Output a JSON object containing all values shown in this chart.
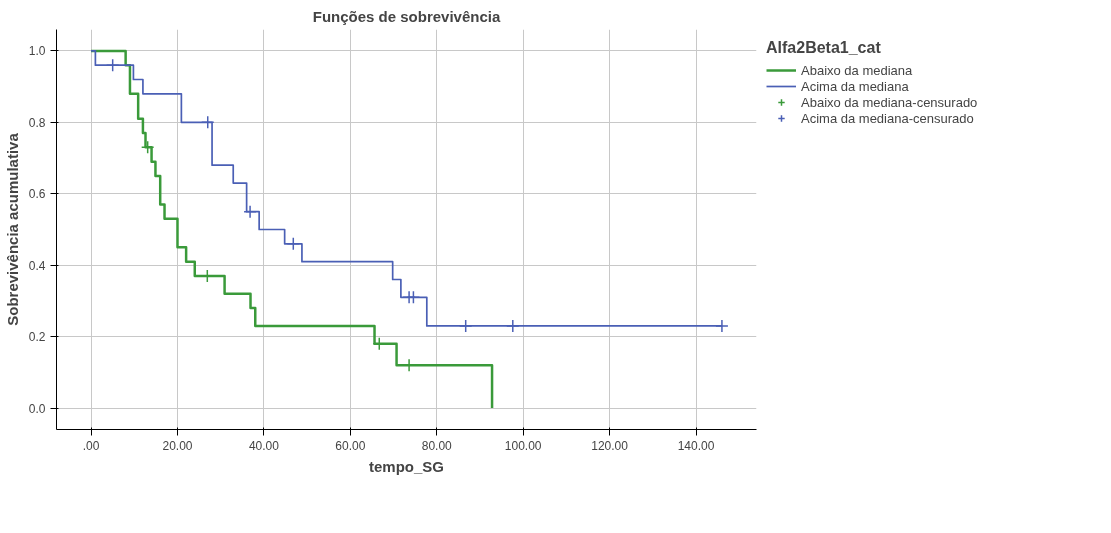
{
  "chart_data": {
    "type": "step",
    "title": "Funções de sobrevivência",
    "xlabel": "tempo_SG",
    "ylabel": "Sobrevivência acumulativa",
    "legend_title": "Alfa2Beta1_cat",
    "legend": "top right",
    "grid": true,
    "line_style": "solid",
    "xlim": [
      -8,
      154
    ],
    "ylim": [
      -0.06,
      1.06
    ],
    "xticks": [
      {
        "value": 0,
        "label": ".00"
      },
      {
        "value": 20,
        "label": "20.00"
      },
      {
        "value": 40,
        "label": "40.00"
      },
      {
        "value": 60,
        "label": "60.00"
      },
      {
        "value": 80,
        "label": "80.00"
      },
      {
        "value": 100,
        "label": "100.00"
      },
      {
        "value": 120,
        "label": "120.00"
      },
      {
        "value": 140,
        "label": "140.00"
      }
    ],
    "yticks": [
      {
        "value": 0,
        "label": "0.0"
      },
      {
        "value": 0.2,
        "label": "0.2"
      },
      {
        "value": 0.4,
        "label": "0.4"
      },
      {
        "value": 0.6,
        "label": "0.6"
      },
      {
        "value": 0.8,
        "label": "0.8"
      },
      {
        "value": 1.0,
        "label": "1.0"
      }
    ],
    "series": [
      {
        "name": "Abaixo da mediana",
        "color": "#3a9a3a",
        "x": [
          0,
          8,
          9,
          10.9,
          12,
          12.6,
          14,
          14.9,
          16,
          17,
          20,
          22,
          24,
          30.9,
          36.9,
          38,
          65.6,
          70.7,
          92.8,
          92.8
        ],
        "values": [
          1,
          0.96,
          0.88,
          0.81,
          0.77,
          0.73,
          0.69,
          0.65,
          0.57,
          0.53,
          0.45,
          0.41,
          0.37,
          0.32,
          0.28,
          0.23,
          0.18,
          0.12,
          0.12,
          0
        ]
      },
      {
        "name": "Acima da mediana",
        "color": "#4a5fb5",
        "x": [
          0,
          1,
          9.8,
          12,
          20.9,
          28,
          32.9,
          36,
          38.9,
          44.8,
          48.8,
          69.8,
          71.7,
          77.7,
          146
        ],
        "values": [
          1,
          0.96,
          0.92,
          0.88,
          0.8,
          0.68,
          0.63,
          0.55,
          0.5,
          0.46,
          0.41,
          0.36,
          0.31,
          0.23,
          0.23
        ]
      },
      {
        "name": "Abaixo da mediana-censurado",
        "type": "scatter",
        "marker": "cross",
        "color": "#3a9a3a",
        "x": [
          13.1,
          26.9,
          66.7,
          73.6
        ],
        "values": [
          0.73,
          0.37,
          0.18,
          0.12
        ]
      },
      {
        "name": "Acima da mediana-censurado",
        "type": "scatter",
        "marker": "cross",
        "color": "#4a5fb5",
        "x": [
          5,
          27,
          36.8,
          46.8,
          73.6,
          74.6,
          86.7,
          97.6,
          146
        ],
        "values": [
          0.96,
          0.8,
          0.55,
          0.46,
          0.31,
          0.31,
          0.23,
          0.23,
          0.23
        ]
      }
    ]
  }
}
